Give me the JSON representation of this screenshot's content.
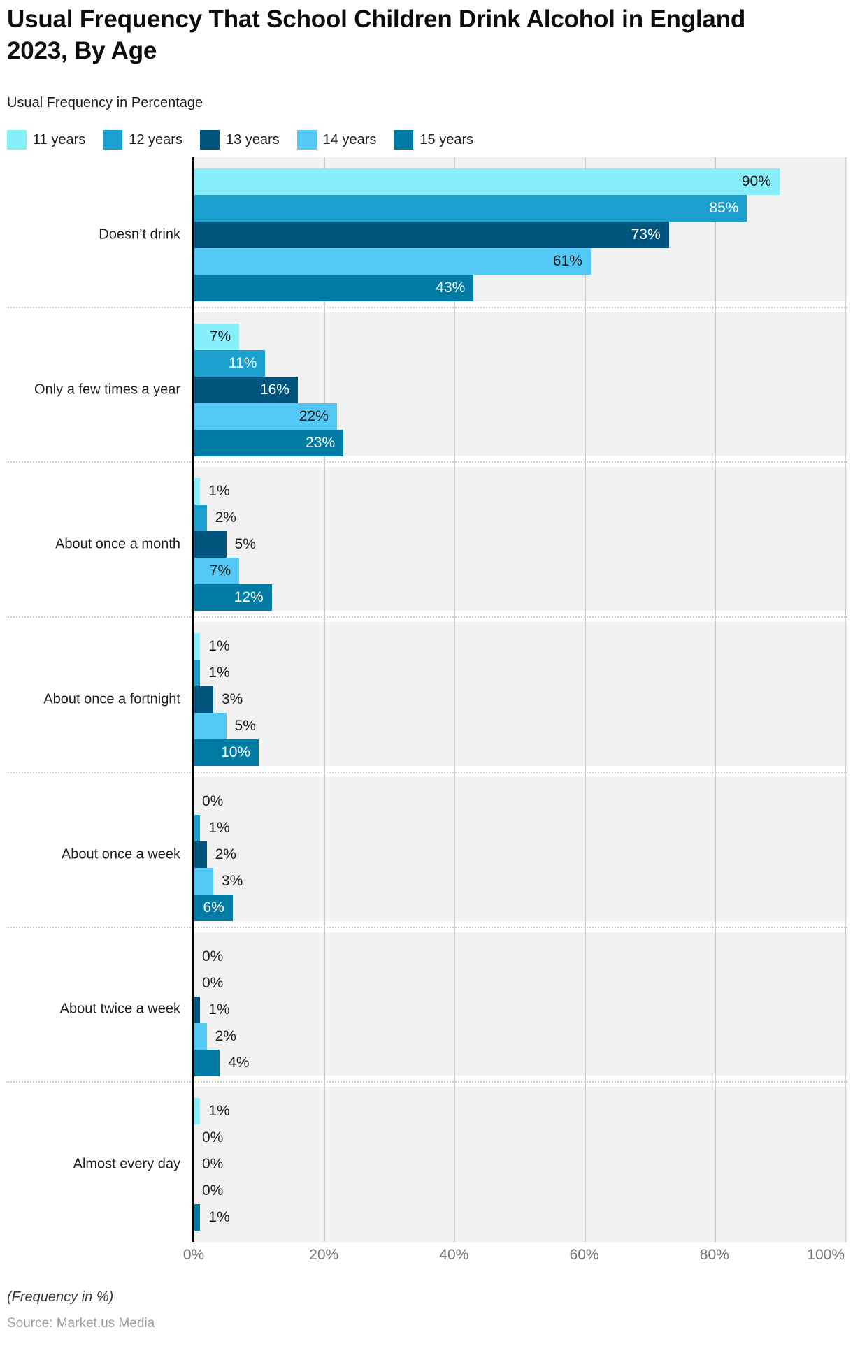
{
  "footnote": "(Frequency in %)",
  "source": "Source: Market.us Media",
  "colors": {
    "plot_background": "#F1F1F1",
    "gridline": "#CCCCCC",
    "axis_line": "#000000",
    "separator": "#CCCCCC",
    "tick_label": "#767676",
    "value_label_dark": "#1F1F1F",
    "value_label_light": "#FFFFFF"
  },
  "chart_data": {
    "type": "bar",
    "orientation": "horizontal",
    "title": "Usual Frequency That School Children Drink Alcohol in England 2023, By Age",
    "subtitle": "Usual Frequency in Percentage",
    "xlabel": "(Frequency in %)",
    "ylabel": "",
    "xlim": [
      0,
      100
    ],
    "x_ticks": [
      "0%",
      "20%",
      "40%",
      "60%",
      "80%",
      "100%"
    ],
    "grid": true,
    "legend_position": "top",
    "value_label_suffix": "%",
    "categories": [
      "Doesn’t drink",
      "Only a few times a year",
      "About once a month",
      "About once a fortnight",
      "About once a week",
      "About twice a week",
      "Almost every day"
    ],
    "series": [
      {
        "name": "11 years",
        "color": "#86EFFB",
        "values": [
          90,
          7,
          1,
          1,
          0,
          0,
          1
        ]
      },
      {
        "name": "12 years",
        "color": "#1B9FCE",
        "values": [
          85,
          11,
          2,
          1,
          1,
          0,
          0
        ]
      },
      {
        "name": "13 years",
        "color": "#00557E",
        "values": [
          73,
          16,
          5,
          3,
          2,
          1,
          0
        ]
      },
      {
        "name": "14 years",
        "color": "#54C8F4",
        "values": [
          61,
          22,
          7,
          5,
          3,
          2,
          0
        ]
      },
      {
        "name": "15 years",
        "color": "#007BA3",
        "values": [
          43,
          23,
          12,
          10,
          6,
          4,
          1
        ]
      }
    ]
  }
}
